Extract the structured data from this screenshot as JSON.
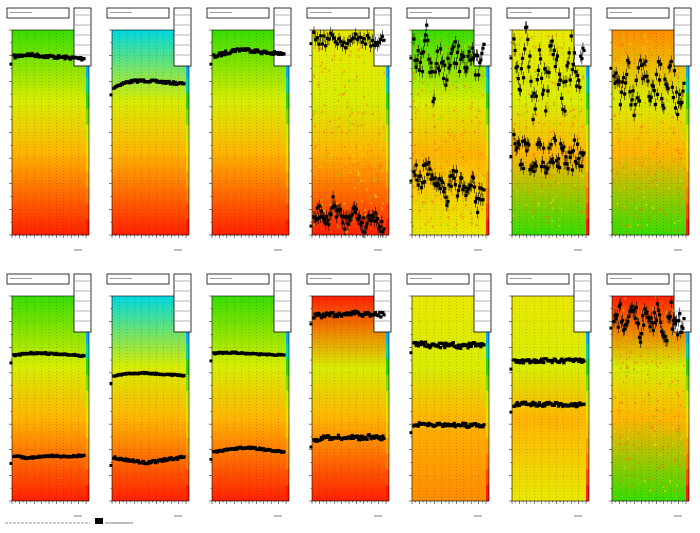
{
  "canvas": {
    "background": "#ffffff"
  },
  "colors": {
    "scale": [
      "#ff1a00",
      "#ff4a00",
      "#ff7a00",
      "#ffa000",
      "#ffc800",
      "#f0e000",
      "#c8f000",
      "#7ee000",
      "#2ed800",
      "#00d8b0",
      "#00b0ff",
      "#2060ff",
      "#5000ff"
    ],
    "markers": "#000000",
    "frame": "#000000"
  },
  "chart_data": [
    {
      "type": "heatmap",
      "panel": 1,
      "row": 1,
      "col": 1,
      "title": "",
      "xlabel": "",
      "ylabel": "",
      "xlim": [
        0,
        1
      ],
      "ylim": [
        0,
        1
      ],
      "grid": true,
      "legend": "top-right",
      "style": "smooth",
      "top_color": "green",
      "bottom_color": "red",
      "series": [
        {
          "values": [
            0.87,
            0.875,
            0.88,
            0.878,
            0.875,
            0.872,
            0.87,
            0.868,
            0.866,
            0.864,
            0.862,
            0.86
          ],
          "jitter": 0.008
        }
      ]
    },
    {
      "type": "heatmap",
      "panel": 2,
      "row": 1,
      "col": 2,
      "title": "",
      "xlabel": "",
      "ylabel": "",
      "xlim": [
        0,
        1
      ],
      "ylim": [
        0,
        1
      ],
      "grid": true,
      "legend": "top-right",
      "style": "smooth",
      "top_color": "cyan",
      "bottom_color": "red",
      "series": [
        {
          "values": [
            0.72,
            0.735,
            0.745,
            0.75,
            0.752,
            0.752,
            0.75,
            0.748,
            0.745,
            0.742,
            0.74,
            0.738
          ],
          "jitter": 0.006
        }
      ]
    },
    {
      "type": "heatmap",
      "panel": 3,
      "row": 1,
      "col": 3,
      "title": "",
      "xlabel": "",
      "ylabel": "",
      "xlim": [
        0,
        1
      ],
      "ylim": [
        0,
        1
      ],
      "grid": true,
      "legend": "top-right",
      "style": "smooth",
      "top_color": "green",
      "bottom_color": "red",
      "series": [
        {
          "values": [
            0.87,
            0.88,
            0.89,
            0.9,
            0.905,
            0.905,
            0.9,
            0.895,
            0.89,
            0.887,
            0.885,
            0.883
          ],
          "jitter": 0.009
        }
      ]
    },
    {
      "type": "heatmap",
      "panel": 4,
      "row": 1,
      "col": 4,
      "title": "",
      "xlabel": "",
      "ylabel": "",
      "xlim": [
        0,
        1
      ],
      "ylim": [
        0,
        1
      ],
      "grid": true,
      "legend": "top-right",
      "style": "noisy",
      "top_color": "yellow",
      "bottom_color": "red",
      "series": [
        {
          "values": [
            0.97,
            0.95,
            0.96,
            0.94,
            0.95,
            0.96,
            0.93,
            0.95
          ],
          "jitter": 0.03
        },
        {
          "values": [
            0.08,
            0.12,
            0.05,
            0.15,
            0.1,
            0.06,
            0.13,
            0.09,
            0.04,
            0.11,
            0.07,
            0.03
          ],
          "jitter": 0.04
        }
      ]
    },
    {
      "type": "heatmap",
      "panel": 5,
      "row": 1,
      "col": 5,
      "title": "",
      "xlabel": "",
      "ylabel": "",
      "xlim": [
        0,
        1
      ],
      "ylim": [
        0,
        1
      ],
      "grid": true,
      "legend": "top-right",
      "style": "noisy",
      "top_color": "green",
      "bottom_color": "yellow",
      "series": [
        {
          "values": [
            0.9,
            0.8,
            0.95,
            0.7,
            0.88,
            0.75,
            0.92,
            0.85,
            0.78,
            0.9,
            0.82,
            0.93
          ],
          "jitter": 0.08
        },
        {
          "values": [
            0.3,
            0.25,
            0.35,
            0.22,
            0.28,
            0.18,
            0.3,
            0.24,
            0.2,
            0.26,
            0.15,
            0.22
          ],
          "jitter": 0.06
        }
      ]
    },
    {
      "type": "heatmap",
      "panel": 6,
      "row": 1,
      "col": 6,
      "title": "",
      "xlabel": "",
      "ylabel": "",
      "xlim": [
        0,
        1
      ],
      "ylim": [
        0,
        1
      ],
      "grid": true,
      "legend": "top-right",
      "style": "noisy",
      "top_color": "yellow",
      "bottom_color": "green",
      "series": [
        {
          "values": [
            0.9,
            0.75,
            0.95,
            0.6,
            0.85,
            0.7,
            0.92,
            0.8,
            0.65,
            0.88,
            0.72,
            0.9
          ],
          "jitter": 0.1
        },
        {
          "values": [
            0.42,
            0.38,
            0.4,
            0.36,
            0.4,
            0.37,
            0.41,
            0.39,
            0.4,
            0.38,
            0.41,
            0.4
          ],
          "jitter": 0.07
        }
      ]
    },
    {
      "type": "heatmap",
      "panel": 7,
      "row": 1,
      "col": 7,
      "title": "",
      "xlabel": "",
      "ylabel": "",
      "xlim": [
        0,
        1
      ],
      "ylim": [
        0,
        1
      ],
      "grid": true,
      "legend": "top-right",
      "style": "noisy",
      "top_color": "orange",
      "bottom_color": "green",
      "series": [
        {
          "values": [
            0.85,
            0.72,
            0.8,
            0.65,
            0.75,
            0.82,
            0.68,
            0.78,
            0.7,
            0.76,
            0.66,
            0.74
          ],
          "jitter": 0.1
        }
      ]
    },
    {
      "type": "heatmap",
      "panel": 8,
      "row": 2,
      "col": 1,
      "title": "",
      "xlabel": "",
      "ylabel": "",
      "xlim": [
        0,
        1
      ],
      "ylim": [
        0,
        1
      ],
      "grid": true,
      "legend": "top-right",
      "style": "smooth",
      "top_color": "green",
      "bottom_color": "red",
      "series": [
        {
          "values": [
            0.71,
            0.715,
            0.72,
            0.722,
            0.722,
            0.72,
            0.718,
            0.716,
            0.714,
            0.712,
            0.71,
            0.708
          ],
          "jitter": 0.004
        },
        {
          "values": [
            0.22,
            0.215,
            0.21,
            0.212,
            0.215,
            0.218,
            0.22,
            0.218,
            0.216,
            0.218,
            0.22,
            0.222
          ],
          "jitter": 0.004
        }
      ]
    },
    {
      "type": "heatmap",
      "panel": 9,
      "row": 2,
      "col": 2,
      "title": "",
      "xlabel": "",
      "ylabel": "",
      "xlim": [
        0,
        1
      ],
      "ylim": [
        0,
        1
      ],
      "grid": true,
      "legend": "top-right",
      "style": "smooth",
      "top_color": "cyan",
      "bottom_color": "red",
      "series": [
        {
          "values": [
            0.61,
            0.615,
            0.62,
            0.622,
            0.624,
            0.624,
            0.622,
            0.62,
            0.618,
            0.616,
            0.614,
            0.612
          ],
          "jitter": 0.003
        },
        {
          "values": [
            0.21,
            0.205,
            0.2,
            0.195,
            0.19,
            0.188,
            0.19,
            0.195,
            0.2,
            0.205,
            0.21,
            0.215
          ],
          "jitter": 0.006
        }
      ]
    },
    {
      "type": "heatmap",
      "panel": 10,
      "row": 2,
      "col": 3,
      "title": "",
      "xlabel": "",
      "ylabel": "",
      "xlim": [
        0,
        1
      ],
      "ylim": [
        0,
        1
      ],
      "grid": true,
      "legend": "top-right",
      "style": "smooth",
      "top_color": "green",
      "bottom_color": "red",
      "series": [
        {
          "values": [
            0.72,
            0.722,
            0.724,
            0.724,
            0.722,
            0.72,
            0.718,
            0.716,
            0.715,
            0.714,
            0.713,
            0.712
          ],
          "jitter": 0.003
        },
        {
          "values": [
            0.24,
            0.245,
            0.25,
            0.255,
            0.258,
            0.26,
            0.258,
            0.255,
            0.25,
            0.246,
            0.242,
            0.24
          ],
          "jitter": 0.004
        }
      ]
    },
    {
      "type": "heatmap",
      "panel": 11,
      "row": 2,
      "col": 4,
      "title": "",
      "xlabel": "",
      "ylabel": "",
      "xlim": [
        0,
        1
      ],
      "ylim": [
        0,
        1
      ],
      "grid": true,
      "legend": "top-right",
      "style": "smooth",
      "top_color": "red",
      "bottom_color": "red",
      "series": [
        {
          "values": [
            0.9,
            0.905,
            0.91,
            0.908,
            0.912,
            0.91,
            0.915,
            0.912,
            0.91,
            0.913,
            0.91,
            0.908
          ],
          "jitter": 0.012
        },
        {
          "values": [
            0.3,
            0.305,
            0.31,
            0.308,
            0.31,
            0.312,
            0.31,
            0.308,
            0.31,
            0.312,
            0.31,
            0.305
          ],
          "jitter": 0.012
        }
      ]
    },
    {
      "type": "heatmap",
      "panel": 12,
      "row": 2,
      "col": 5,
      "title": "",
      "xlabel": "",
      "ylabel": "",
      "xlim": [
        0,
        1
      ],
      "ylim": [
        0,
        1
      ],
      "grid": true,
      "legend": "top-right",
      "style": "smooth",
      "top_color": "yellow",
      "bottom_color": "orange",
      "series": [
        {
          "values": [
            0.76,
            0.765,
            0.76,
            0.755,
            0.76,
            0.758,
            0.762,
            0.76,
            0.755,
            0.758,
            0.76,
            0.762
          ],
          "jitter": 0.014
        },
        {
          "values": [
            0.37,
            0.372,
            0.375,
            0.37,
            0.372,
            0.375,
            0.37,
            0.372,
            0.37,
            0.368,
            0.37,
            0.372
          ],
          "jitter": 0.01
        }
      ]
    },
    {
      "type": "heatmap",
      "panel": 13,
      "row": 2,
      "col": 6,
      "title": "",
      "xlabel": "",
      "ylabel": "",
      "xlim": [
        0,
        1
      ],
      "ylim": [
        0,
        1
      ],
      "grid": true,
      "legend": "top-right",
      "style": "smooth",
      "top_color": "yellow",
      "bottom_color": "yellow",
      "series": [
        {
          "values": [
            0.68,
            0.682,
            0.685,
            0.683,
            0.685,
            0.684,
            0.682,
            0.684,
            0.683,
            0.685,
            0.684,
            0.682
          ],
          "jitter": 0.01
        },
        {
          "values": [
            0.47,
            0.472,
            0.475,
            0.472,
            0.47,
            0.472,
            0.474,
            0.472,
            0.47,
            0.468,
            0.47,
            0.472
          ],
          "jitter": 0.01
        }
      ]
    },
    {
      "type": "heatmap",
      "panel": 14,
      "row": 2,
      "col": 7,
      "title": "",
      "xlabel": "",
      "ylabel": "",
      "xlim": [
        0,
        1
      ],
      "ylim": [
        0,
        1
      ],
      "grid": true,
      "legend": "top-right",
      "style": "noisy",
      "top_color": "red",
      "bottom_color": "green",
      "series": [
        {
          "values": [
            0.88,
            0.92,
            0.85,
            0.95,
            0.82,
            0.9,
            0.86,
            0.93,
            0.8,
            0.91,
            0.84,
            0.89
          ],
          "jitter": 0.06
        }
      ]
    }
  ]
}
